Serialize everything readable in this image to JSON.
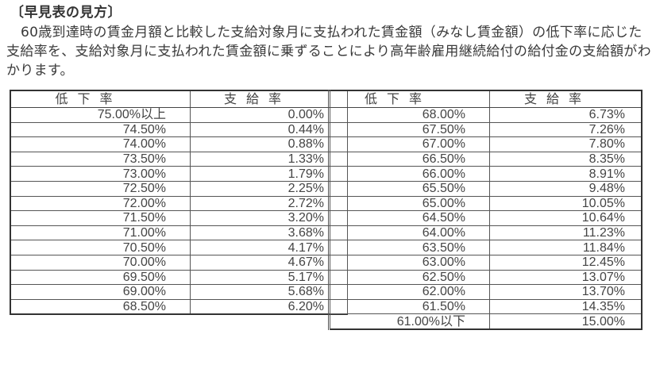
{
  "heading": "〔早見表の見方〕",
  "paragraph": "60歳到達時の賃金月額と比較した支給対象月に支払われた賃金額（みなし賃金額）の低下率に応じた支給率を、支給対象月に支払われた賃金額に乗ずることにより高年齢雇用継続給付の給付金の支給額がわかります。",
  "table": {
    "headers": [
      "低下率",
      "支給率"
    ],
    "left_rows": [
      [
        "75.00%以上",
        "0.00%"
      ],
      [
        "74.50%",
        "0.44%"
      ],
      [
        "74.00%",
        "0.88%"
      ],
      [
        "73.50%",
        "1.33%"
      ],
      [
        "73.00%",
        "1.79%"
      ],
      [
        "72.50%",
        "2.25%"
      ],
      [
        "72.00%",
        "2.72%"
      ],
      [
        "71.50%",
        "3.20%"
      ],
      [
        "71.00%",
        "3.68%"
      ],
      [
        "70.50%",
        "4.17%"
      ],
      [
        "70.00%",
        "4.67%"
      ],
      [
        "69.50%",
        "5.17%"
      ],
      [
        "69.00%",
        "5.68%"
      ],
      [
        "68.50%",
        "6.20%"
      ]
    ],
    "right_rows": [
      [
        "68.00%",
        "6.73%"
      ],
      [
        "67.50%",
        "7.26%"
      ],
      [
        "67.00%",
        "7.80%"
      ],
      [
        "66.50%",
        "8.35%"
      ],
      [
        "66.00%",
        "8.91%"
      ],
      [
        "65.50%",
        "9.48%"
      ],
      [
        "65.00%",
        "10.05%"
      ],
      [
        "64.50%",
        "10.64%"
      ],
      [
        "64.00%",
        "11.23%"
      ],
      [
        "63.50%",
        "11.84%"
      ],
      [
        "63.00%",
        "12.45%"
      ],
      [
        "62.50%",
        "13.07%"
      ],
      [
        "62.00%",
        "13.70%"
      ],
      [
        "61.50%",
        "14.35%"
      ],
      [
        "61.00%以下",
        "15.00%"
      ]
    ]
  }
}
